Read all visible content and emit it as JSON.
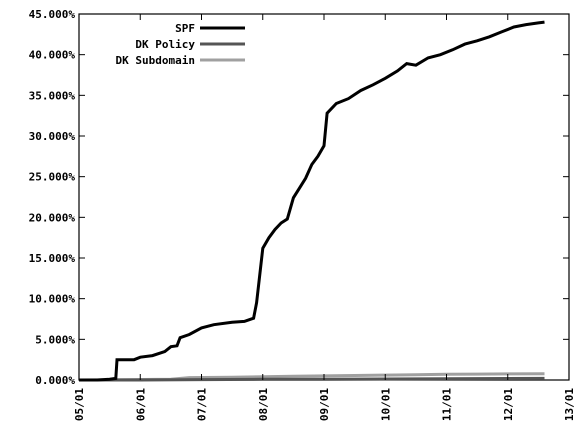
{
  "chart_data": {
    "type": "line",
    "title": "",
    "xlabel": "",
    "ylabel": "",
    "x_ticks": [
      "05/01",
      "06/01",
      "07/01",
      "08/01",
      "09/01",
      "10/01",
      "11/01",
      "12/01",
      "13/01"
    ],
    "y_ticks": [
      "0.000%",
      "5.000%",
      "10.000%",
      "15.000%",
      "20.000%",
      "25.000%",
      "30.000%",
      "35.000%",
      "40.000%",
      "45.000%"
    ],
    "xlim": [
      0,
      8
    ],
    "ylim": [
      0,
      45
    ],
    "grid": false,
    "legend_position": "top-right",
    "series": [
      {
        "name": "SPF",
        "color": "#000000",
        "points": [
          [
            0.0,
            0.0
          ],
          [
            0.3,
            0.0
          ],
          [
            0.5,
            0.1
          ],
          [
            0.6,
            0.2
          ],
          [
            0.62,
            2.5
          ],
          [
            0.9,
            2.5
          ],
          [
            1.0,
            2.8
          ],
          [
            1.2,
            3.0
          ],
          [
            1.4,
            3.5
          ],
          [
            1.5,
            4.1
          ],
          [
            1.6,
            4.2
          ],
          [
            1.65,
            5.2
          ],
          [
            1.8,
            5.6
          ],
          [
            2.0,
            6.4
          ],
          [
            2.2,
            6.8
          ],
          [
            2.5,
            7.1
          ],
          [
            2.7,
            7.2
          ],
          [
            2.85,
            7.6
          ],
          [
            2.9,
            9.5
          ],
          [
            3.0,
            16.2
          ],
          [
            3.1,
            17.5
          ],
          [
            3.2,
            18.5
          ],
          [
            3.3,
            19.3
          ],
          [
            3.4,
            19.8
          ],
          [
            3.5,
            22.4
          ],
          [
            3.6,
            23.6
          ],
          [
            3.7,
            24.8
          ],
          [
            3.8,
            26.5
          ],
          [
            3.9,
            27.5
          ],
          [
            4.0,
            28.8
          ],
          [
            4.05,
            32.8
          ],
          [
            4.2,
            34.0
          ],
          [
            4.4,
            34.6
          ],
          [
            4.6,
            35.6
          ],
          [
            4.8,
            36.3
          ],
          [
            5.0,
            37.1
          ],
          [
            5.2,
            38.0
          ],
          [
            5.35,
            38.9
          ],
          [
            5.5,
            38.7
          ],
          [
            5.7,
            39.6
          ],
          [
            5.9,
            40.0
          ],
          [
            6.1,
            40.6
          ],
          [
            6.3,
            41.3
          ],
          [
            6.5,
            41.7
          ],
          [
            6.7,
            42.2
          ],
          [
            6.9,
            42.8
          ],
          [
            7.1,
            43.4
          ],
          [
            7.3,
            43.7
          ],
          [
            7.5,
            43.9
          ],
          [
            7.6,
            44.0
          ]
        ]
      },
      {
        "name": "DK Policy",
        "color": "#555555",
        "points": [
          [
            0.0,
            0.0
          ],
          [
            1.0,
            0.0
          ],
          [
            2.0,
            0.05
          ],
          [
            3.0,
            0.08
          ],
          [
            4.0,
            0.1
          ],
          [
            5.0,
            0.12
          ],
          [
            6.0,
            0.15
          ],
          [
            7.0,
            0.18
          ],
          [
            7.6,
            0.2
          ]
        ]
      },
      {
        "name": "DK Subdomain",
        "color": "#a0a0a0",
        "points": [
          [
            0.0,
            0.0
          ],
          [
            1.5,
            0.1
          ],
          [
            1.8,
            0.3
          ],
          [
            2.5,
            0.35
          ],
          [
            3.0,
            0.4
          ],
          [
            3.5,
            0.45
          ],
          [
            4.0,
            0.5
          ],
          [
            4.5,
            0.55
          ],
          [
            5.0,
            0.6
          ],
          [
            5.5,
            0.65
          ],
          [
            6.0,
            0.7
          ],
          [
            6.5,
            0.72
          ],
          [
            7.0,
            0.75
          ],
          [
            7.6,
            0.78
          ]
        ]
      }
    ]
  }
}
